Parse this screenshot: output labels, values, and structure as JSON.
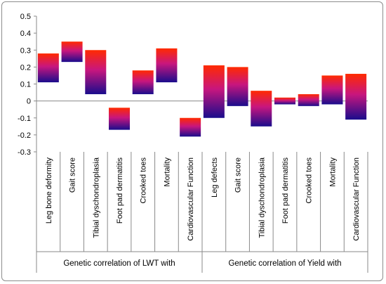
{
  "chart_data": {
    "type": "bar",
    "subtype": "floating-range",
    "ylim": [
      -0.3,
      0.5
    ],
    "yticks": [
      "0.5",
      "0.4",
      "0.3",
      "0.2",
      "0.1",
      "0",
      "-0.1",
      "-0.2",
      "-0.3"
    ],
    "grid": false,
    "legend": "none",
    "gradient": {
      "top": "#ff2a00",
      "mid": "#c8167e",
      "bottom": "#1a0c8c"
    },
    "categories": [
      "Leg bone deformity",
      "Gait score",
      "Tibial dyschondroplasia",
      "Foot pad dermatitis",
      "Crooked toes",
      "Mortality",
      "Cardiovascular Function",
      "Leg defects",
      "Gait score",
      "Tibial dyschondroplasia",
      "Foot pad dermatitis",
      "Crooked toes",
      "Mortality",
      "Cardiovascular Function"
    ],
    "ranges": [
      [
        0.11,
        0.28
      ],
      [
        0.23,
        0.35
      ],
      [
        0.04,
        0.3
      ],
      [
        -0.17,
        -0.04
      ],
      [
        0.04,
        0.18
      ],
      [
        0.11,
        0.31
      ],
      [
        -0.21,
        -0.1
      ],
      [
        -0.1,
        0.21
      ],
      [
        -0.03,
        0.2
      ],
      [
        -0.15,
        0.06
      ],
      [
        -0.02,
        0.02
      ],
      [
        -0.03,
        0.04
      ],
      [
        -0.02,
        0.15
      ],
      [
        -0.11,
        0.16
      ]
    ],
    "groups": [
      {
        "label": "Genetic correlation of LWT with",
        "count": 7
      },
      {
        "label": "Genetic correlation of Yield with",
        "count": 7
      }
    ]
  }
}
